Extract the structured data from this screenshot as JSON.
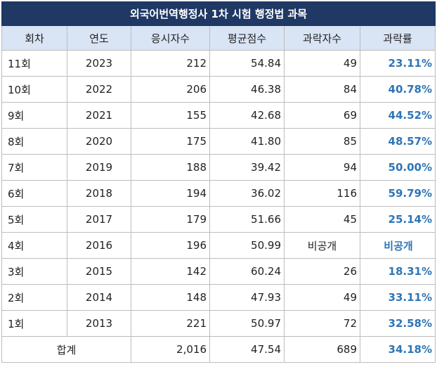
{
  "title": "외국어번역행정사 1차 시험 행정법 과목",
  "headers": [
    "회차",
    "연도",
    "응시자수",
    "평균점수",
    "과락자수",
    "과락률"
  ],
  "rows": [
    {
      "round": "11회",
      "year": "2023",
      "applicants": "212",
      "avg": "54.84",
      "fails": "49",
      "rate": "23.11%"
    },
    {
      "round": "10회",
      "year": "2022",
      "applicants": "206",
      "avg": "46.38",
      "fails": "84",
      "rate": "40.78%"
    },
    {
      "round": "9회",
      "year": "2021",
      "applicants": "155",
      "avg": "42.68",
      "fails": "69",
      "rate": "44.52%"
    },
    {
      "round": "8회",
      "year": "2020",
      "applicants": "175",
      "avg": "41.80",
      "fails": "85",
      "rate": "48.57%"
    },
    {
      "round": "7회",
      "year": "2019",
      "applicants": "188",
      "avg": "39.42",
      "fails": "94",
      "rate": "50.00%"
    },
    {
      "round": "6회",
      "year": "2018",
      "applicants": "194",
      "avg": "36.02",
      "fails": "116",
      "rate": "59.79%"
    },
    {
      "round": "5회",
      "year": "2017",
      "applicants": "179",
      "avg": "51.66",
      "fails": "45",
      "rate": "25.14%"
    },
    {
      "round": "4회",
      "year": "2016",
      "applicants": "196",
      "avg": "50.99",
      "fails": "비공개",
      "rate": "비공개"
    },
    {
      "round": "3회",
      "year": "2015",
      "applicants": "142",
      "avg": "60.24",
      "fails": "26",
      "rate": "18.31%"
    },
    {
      "round": "2회",
      "year": "2014",
      "applicants": "148",
      "avg": "47.93",
      "fails": "49",
      "rate": "33.11%"
    },
    {
      "round": "1회",
      "year": "2013",
      "applicants": "221",
      "avg": "50.97",
      "fails": "72",
      "rate": "32.58%"
    }
  ],
  "total": {
    "label": "합계",
    "applicants": "2,016",
    "avg": "47.54",
    "fails": "689",
    "rate": "34.18%"
  }
}
